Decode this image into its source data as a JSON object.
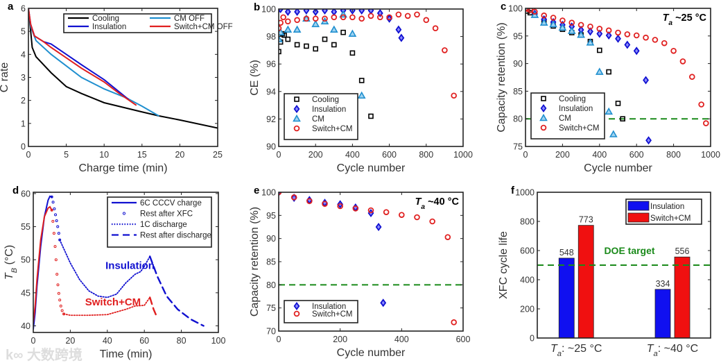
{
  "watermark": "大数跨境",
  "chart_data": [
    {
      "id": "a",
      "letter": "a",
      "type": "line",
      "xlabel": "Charge time (min)",
      "ylabel": "C rate",
      "xlim": [
        0,
        25
      ],
      "ylim": [
        0,
        6
      ],
      "xticks": [
        0,
        5,
        10,
        15,
        20,
        25
      ],
      "yticks": [
        0,
        1,
        2,
        3,
        4,
        5,
        6
      ],
      "series": [
        {
          "name": "Cooling",
          "color": "#000000",
          "style": "solid",
          "x": [
            0,
            0.3,
            0.5,
            1,
            3,
            5,
            7,
            10,
            15,
            17.2,
            20,
            25
          ],
          "y": [
            6,
            5,
            4.3,
            3.9,
            3.2,
            2.6,
            2.3,
            1.9,
            1.5,
            1.33,
            1.15,
            0.8
          ]
        },
        {
          "name": "CM OFF",
          "color": "#1f8fcf",
          "style": "solid",
          "x": [
            0,
            0.3,
            1,
            3,
            5,
            7,
            10,
            13,
            15,
            17.2
          ],
          "y": [
            6,
            5.2,
            4.6,
            4.0,
            3.5,
            3.0,
            2.5,
            2.1,
            1.75,
            1.33
          ]
        },
        {
          "name": "Insulation",
          "color": "#1010d0",
          "style": "solid",
          "x": [
            0,
            0.3,
            0.8,
            2,
            3,
            5,
            7,
            10,
            13.2
          ],
          "y": [
            6,
            5.3,
            4.8,
            4.55,
            4.45,
            4.0,
            3.55,
            2.9,
            2.05
          ]
        },
        {
          "name": "Switch+CM OFF",
          "color": "#e02020",
          "style": "solid",
          "x": [
            0,
            0.3,
            0.8,
            2,
            3,
            5,
            7,
            10,
            12,
            14.2
          ],
          "y": [
            6,
            5.3,
            4.8,
            4.55,
            4.3,
            3.85,
            3.4,
            2.8,
            2.3,
            1.8
          ]
        }
      ],
      "legend_order": [
        "Cooling",
        "CM OFF",
        "Insulation",
        "Switch+CM OFF"
      ],
      "legend_location": "top-right"
    },
    {
      "id": "b",
      "letter": "b",
      "type": "scatter",
      "xlabel": "Cycle number",
      "ylabel": "CE (%)",
      "xlim": [
        0,
        1000
      ],
      "ylim": [
        90,
        100
      ],
      "xticks": [
        0,
        200,
        400,
        600,
        800,
        1000
      ],
      "yticks": [
        90,
        92,
        94,
        96,
        98,
        100
      ],
      "series": [
        {
          "name": "Cooling",
          "color": "#000000",
          "marker": "square",
          "x": [
            0,
            10,
            20,
            30,
            50,
            100,
            150,
            200,
            250,
            300,
            350,
            400,
            450,
            500
          ],
          "y": [
            96.9,
            97.6,
            98.2,
            98.1,
            97.8,
            97.4,
            97.3,
            97.1,
            97.8,
            97.4,
            98.3,
            96.8,
            94.8,
            92.2
          ]
        },
        {
          "name": "Insulation",
          "color": "#1010d0",
          "marker": "diamond",
          "x": [
            0,
            10,
            50,
            100,
            150,
            200,
            250,
            300,
            350,
            400,
            450,
            500,
            550,
            600,
            650,
            665
          ],
          "y": [
            100,
            100,
            99.8,
            99.8,
            99.9,
            99.8,
            99.9,
            99.8,
            99.9,
            99.9,
            99.9,
            99.9,
            99.7,
            99.3,
            98.5,
            97.9
          ]
        },
        {
          "name": "CM",
          "color": "#1f8fcf",
          "marker": "triangle",
          "x": [
            0,
            10,
            50,
            100,
            150,
            200,
            250,
            300,
            350,
            400,
            450
          ],
          "y": [
            97.8,
            98.3,
            98.5,
            98.5,
            99.3,
            98.9,
            99.1,
            98.5,
            99.6,
            98.2,
            93.7
          ]
        },
        {
          "name": "Switch+CM",
          "color": "#e02020",
          "marker": "circle",
          "x": [
            0,
            10,
            25,
            50,
            100,
            150,
            200,
            250,
            300,
            350,
            400,
            450,
            500,
            550,
            600,
            650,
            700,
            750,
            800,
            850,
            900,
            950
          ],
          "y": [
            98.6,
            99.0,
            99.4,
            99.1,
            99.2,
            99.3,
            99.3,
            99.3,
            99.4,
            99.4,
            99.4,
            99.3,
            99.5,
            99.4,
            99.4,
            99.6,
            99.5,
            99.6,
            99.2,
            98.6,
            97.0,
            93.7
          ]
        }
      ],
      "legend_location": "bottom-left"
    },
    {
      "id": "c",
      "letter": "c",
      "type": "scatter",
      "xlabel": "Cycle number",
      "ylabel": "Capacity retention (%)",
      "xlim": [
        0,
        1000
      ],
      "ylim": [
        75,
        100
      ],
      "xticks": [
        0,
        200,
        400,
        600,
        800,
        1000
      ],
      "yticks": [
        75,
        80,
        85,
        90,
        95,
        100
      ],
      "annotation": {
        "main": "T",
        "sub": "a",
        "rest": " ~25 °C"
      },
      "reference_line": {
        "y": 80,
        "color": "#1a8a1a",
        "style": "dashed"
      },
      "series": [
        {
          "name": "Cooling",
          "color": "#000000",
          "marker": "square",
          "x": [
            0,
            10,
            25,
            50,
            100,
            150,
            200,
            250,
            300,
            350,
            400,
            450,
            500,
            525
          ],
          "y": [
            100,
            99.5,
            99.2,
            98.8,
            97.5,
            96.8,
            96.2,
            95.6,
            95.2,
            94.0,
            92.4,
            88.5,
            82.8,
            80
          ]
        },
        {
          "name": "Insulation",
          "color": "#1010d0",
          "marker": "diamond",
          "x": [
            0,
            50,
            100,
            150,
            200,
            250,
            300,
            350,
            400,
            450,
            500,
            550,
            600,
            650,
            665
          ],
          "y": [
            100,
            99,
            98,
            97.5,
            97,
            96.7,
            96.1,
            95.8,
            95.4,
            95.1,
            94.5,
            93.4,
            92.3,
            87,
            76.1
          ]
        },
        {
          "name": "CM",
          "color": "#1f8fcf",
          "marker": "triangle",
          "x": [
            0,
            50,
            100,
            150,
            200,
            250,
            300,
            350,
            400,
            450,
            475
          ],
          "y": [
            100,
            98.8,
            97.4,
            97.1,
            96.5,
            95.9,
            95.2,
            93.8,
            88.5,
            81.3,
            77.2
          ]
        },
        {
          "name": "Switch+CM",
          "color": "#e02020",
          "marker": "circle",
          "x": [
            0,
            10,
            25,
            50,
            100,
            150,
            200,
            250,
            300,
            350,
            400,
            450,
            500,
            550,
            600,
            650,
            700,
            750,
            800,
            850,
            900,
            950,
            975
          ],
          "y": [
            100,
            99.9,
            99.7,
            99.4,
            98.7,
            98.3,
            97.8,
            97.4,
            97.0,
            96.7,
            96.3,
            96.0,
            95.6,
            95.3,
            95.1,
            94.7,
            94.3,
            93.7,
            92.3,
            90.4,
            87.6,
            82.6,
            79.2
          ]
        }
      ],
      "legend_location": "bottom-left"
    },
    {
      "id": "d",
      "letter": "d",
      "type": "line",
      "xlabel": "Time (min)",
      "ylabel": {
        "main": "T",
        "sub": "B",
        "rest": " (°C)"
      },
      "xlim": [
        0,
        100
      ],
      "ylim": [
        39,
        60.2
      ],
      "xticks": [
        0,
        20,
        40,
        60,
        80,
        100
      ],
      "yticks": [
        40,
        45,
        50,
        55,
        60
      ],
      "text_labels": [
        {
          "text": "Insulation",
          "color": "#1010d0",
          "x": 39,
          "y": 48.6
        },
        {
          "text": "Switch+CM",
          "color": "#e02020",
          "x": 28,
          "y": 43.1
        }
      ],
      "legend": [
        {
          "name": "6C CCCV charge",
          "style": "solid"
        },
        {
          "name": "Rest after XFC",
          "style": "dots"
        },
        {
          "name": "1C discharge",
          "style": "dotted"
        },
        {
          "name": "Rest after discharge",
          "style": "dashed"
        }
      ],
      "legend_color": "#1010d0",
      "series": [
        {
          "name": "Insulation charge",
          "color": "#1010d0",
          "style": "solid",
          "x": [
            0,
            1,
            2,
            4,
            6,
            8,
            9,
            10
          ],
          "y": [
            39.5,
            42,
            46,
            52,
            56.5,
            59,
            59.6,
            59.5
          ]
        },
        {
          "name": "Insulation rest after XFC",
          "color": "#1010d0",
          "style": "dots",
          "x": [
            10,
            10.7,
            11.4,
            12,
            12.6,
            13.2,
            13.8,
            14.3
          ],
          "y": [
            59.5,
            58.7,
            57.7,
            56.8,
            55.9,
            55,
            54,
            53
          ]
        },
        {
          "name": "Insulation discharge",
          "color": "#1010d0",
          "style": "dotted",
          "x": [
            14.3,
            20,
            25,
            30,
            35,
            40,
            45,
            50,
            55,
            58,
            60,
            63
          ],
          "y": [
            53,
            49.5,
            47,
            45.3,
            44.5,
            44.3,
            44.8,
            46.5,
            47.8,
            48.2,
            49,
            50.5
          ]
        },
        {
          "name": "Insulation rest after discharge",
          "color": "#1010d0",
          "style": "dashed",
          "x": [
            63,
            67,
            72,
            78,
            85,
            92
          ],
          "y": [
            50.5,
            47.5,
            44.5,
            42.5,
            41,
            40
          ]
        },
        {
          "name": "Switch+CM charge",
          "color": "#e02020",
          "style": "solid",
          "x": [
            0,
            1,
            2,
            4,
            6,
            8,
            9,
            10
          ],
          "y": [
            40.5,
            43,
            47,
            53,
            56.5,
            57.8,
            58,
            57.5
          ]
        },
        {
          "name": "Switch+CM rest after XFC",
          "color": "#e02020",
          "style": "dots",
          "x": [
            10,
            10.6,
            11.2,
            11.8,
            12.3,
            12.8,
            13.3,
            13.8,
            14.3,
            14.9,
            15.6,
            16.5
          ],
          "y": [
            57.5,
            55.8,
            54,
            52,
            50,
            47.8,
            46.2,
            44.9,
            43.9,
            43,
            42.3,
            41.8
          ]
        },
        {
          "name": "Switch+CM discharge",
          "color": "#e02020",
          "style": "dotted",
          "x": [
            16.5,
            20,
            30,
            40,
            50,
            55,
            60,
            63
          ],
          "y": [
            41.8,
            41.6,
            41.6,
            41.7,
            42.5,
            43,
            43.1,
            44.3
          ]
        },
        {
          "name": "Switch+CM rest after discharge",
          "color": "#e02020",
          "style": "dashed",
          "x": [
            63,
            65,
            67
          ],
          "y": [
            44.3,
            42.5,
            41.2
          ]
        }
      ]
    },
    {
      "id": "e",
      "letter": "e",
      "type": "scatter",
      "xlabel": "Cycle number",
      "ylabel": "Capacity retention (%)",
      "xlim": [
        0,
        600
      ],
      "ylim": [
        70,
        100
      ],
      "xticks": [
        0,
        200,
        400,
        600
      ],
      "yticks": [
        70,
        75,
        80,
        85,
        90,
        95,
        100
      ],
      "annotation": {
        "main": "T",
        "sub": "a",
        "rest": " ~40 °C"
      },
      "reference_line": {
        "y": 80,
        "color": "#1a8a1a",
        "style": "dashed"
      },
      "series": [
        {
          "name": "Insulation",
          "color": "#1010d0",
          "marker": "diamond",
          "x": [
            0,
            50,
            100,
            150,
            200,
            250,
            300,
            325,
            340
          ],
          "y": [
            100,
            98.8,
            98.3,
            97.7,
            97.4,
            96.7,
            95.5,
            92.5,
            76.1
          ]
        },
        {
          "name": "Switch+CM",
          "color": "#e02020",
          "marker": "circle",
          "x": [
            0,
            50,
            100,
            150,
            200,
            250,
            300,
            350,
            400,
            450,
            500,
            550,
            570
          ],
          "y": [
            100,
            98.9,
            98.1,
            97.5,
            97.0,
            96.5,
            96.1,
            95.7,
            95.1,
            94.6,
            93.7,
            90.3,
            71.9
          ]
        }
      ],
      "legend_location": "bottom-left"
    },
    {
      "id": "f",
      "letter": "f",
      "type": "bar",
      "ylabel": "XFC cycle life",
      "xlabel": "",
      "ylim": [
        0,
        1000
      ],
      "yticks": [
        0,
        200,
        400,
        600,
        800,
        1000
      ],
      "categories": [
        {
          "main": "T",
          "sub": "a",
          "rest": ": ~25 °C"
        },
        {
          "main": "T",
          "sub": "a",
          "rest": ": ~40 °C"
        }
      ],
      "series": [
        {
          "name": "Insulation",
          "color": "#1010f0",
          "values": [
            548,
            334
          ]
        },
        {
          "name": "Switch+CM",
          "color": "#f01010",
          "values": [
            773,
            556
          ]
        }
      ],
      "reference_line": {
        "y": 500,
        "color": "#1a8a1a",
        "style": "dashed",
        "label": "DOE target"
      },
      "legend_location": "top-right"
    }
  ]
}
